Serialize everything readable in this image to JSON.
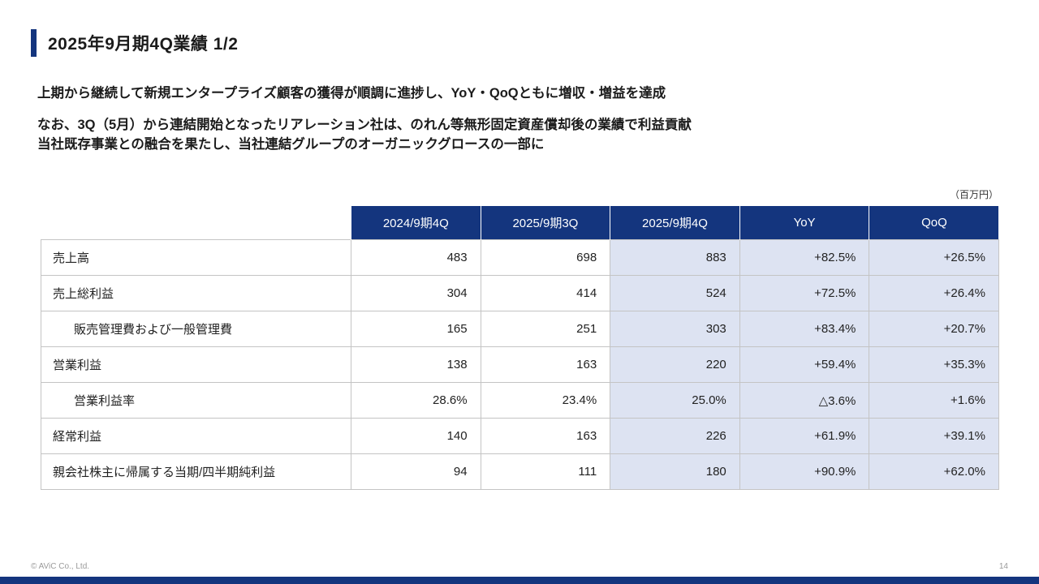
{
  "colors": {
    "accent_navy": "#14357e",
    "highlight_column": "#dde3f2"
  },
  "slide": {
    "title": "2025年9月期4Q業績 1/2",
    "lead_lines": [
      "上期から継続して新規エンタープライズ顧客の獲得が順調に進捗し、YoY・QoQともに増収・増益を達成",
      "なお、3Q（5月）から連結開始となったリアレーション社は、のれん等無形固定資産償却後の業績で利益貢献",
      "当社既存事業との融合を果たし、当社連結グループのオーガニックグロースの一部に"
    ],
    "unit_note": "（百万円）",
    "footer": {
      "copyright": "© AViC Co., Ltd.",
      "page_number": "14"
    }
  },
  "table": {
    "columns": [
      "",
      "2024/9期4Q",
      "2025/9期3Q",
      "2025/9期4Q",
      "YoY",
      "QoQ"
    ],
    "rows": [
      {
        "label": "売上高",
        "values": [
          "483",
          "698",
          "883",
          "+82.5%",
          "+26.5%"
        ]
      },
      {
        "label": "売上総利益",
        "values": [
          "304",
          "414",
          "524",
          "+72.5%",
          "+26.4%"
        ]
      },
      {
        "label": "販売管理費および一般管理費",
        "values": [
          "165",
          "251",
          "303",
          "+83.4%",
          "+20.7%"
        ]
      },
      {
        "label": "営業利益",
        "values": [
          "138",
          "163",
          "220",
          "+59.4%",
          "+35.3%"
        ]
      },
      {
        "label": "営業利益率",
        "values": [
          "28.6%",
          "23.4%",
          "25.0%",
          "△3.6%",
          "+1.6%"
        ]
      },
      {
        "label": "経常利益",
        "values": [
          "140",
          "163",
          "226",
          "+61.9%",
          "+39.1%"
        ]
      },
      {
        "label": "親会社株主に帰属する当期/四半期純利益",
        "values": [
          "94",
          "111",
          "180",
          "+90.9%",
          "+62.0%"
        ]
      }
    ]
  }
}
